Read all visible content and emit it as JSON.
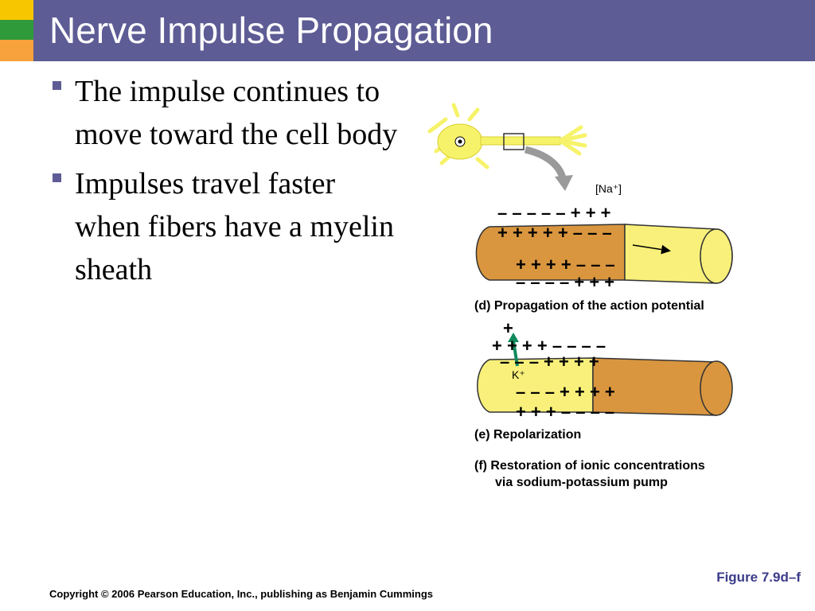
{
  "slide": {
    "title": "Nerve Impulse Propagation",
    "bullets": [
      "The impulse continues to move toward the cell body",
      "Impulses travel faster when fibers have a myelin sheath"
    ]
  },
  "diagram": {
    "na_label": "[Na⁺]",
    "k_label": "K⁺",
    "caption_d": "(d) Propagation of the action potential",
    "caption_e": "(e) Repolarization",
    "caption_f_line1": "(f) Restoration of ionic concentrations",
    "caption_f_line2": "via sodium-potassium pump",
    "colors": {
      "axon_dark": "#d9963f",
      "axon_light": "#f8f07a",
      "neuron": "#f6f36a",
      "arrow_gray": "#9a9a9a",
      "k_arrow": "#108a5c"
    }
  },
  "figure_ref": "Figure 7.9d–f",
  "copyright": "Copyright © 2006 Pearson Education, Inc., publishing as Benjamin Cummings"
}
